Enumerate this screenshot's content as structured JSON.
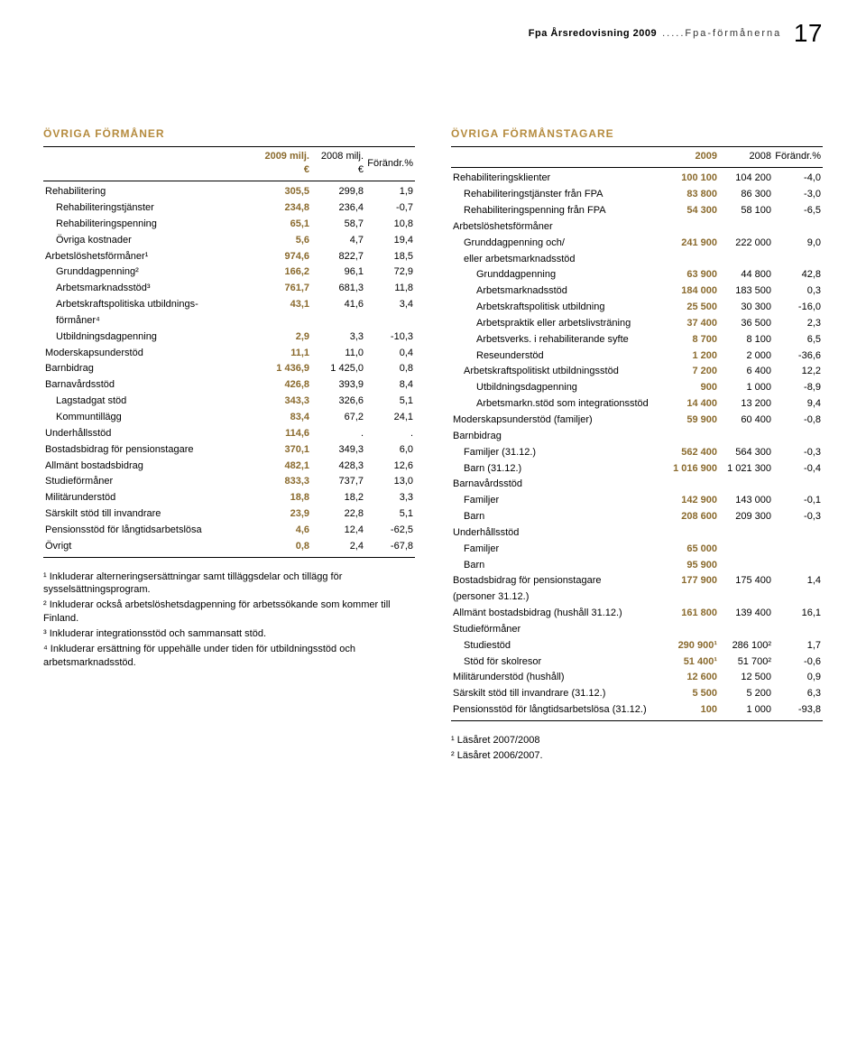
{
  "header": {
    "title": "Fpa Årsredovisning 2009",
    "section": ".....Fpa-förmånerna",
    "page": "17"
  },
  "left_table": {
    "title": "ÖVRIGA FÖRMÅNER",
    "columns": [
      "",
      "2009 milj. €",
      "2008 milj. €",
      "Förändr.%"
    ],
    "rows": [
      {
        "l": "Rehabilitering",
        "i": 0,
        "v": [
          "305,5",
          "299,8",
          "1,9"
        ]
      },
      {
        "l": "Rehabiliteringstjänster",
        "i": 1,
        "v": [
          "234,8",
          "236,4",
          "-0,7"
        ]
      },
      {
        "l": "Rehabiliteringspenning",
        "i": 1,
        "v": [
          "65,1",
          "58,7",
          "10,8"
        ]
      },
      {
        "l": "Övriga kostnader",
        "i": 1,
        "v": [
          "5,6",
          "4,7",
          "19,4"
        ]
      },
      {
        "l": "Arbetslöshetsförmåner¹",
        "i": 0,
        "v": [
          "974,6",
          "822,7",
          "18,5"
        ]
      },
      {
        "l": "Grunddagpenning²",
        "i": 1,
        "v": [
          "166,2",
          "96,1",
          "72,9"
        ]
      },
      {
        "l": "Arbetsmarknadsstöd³",
        "i": 1,
        "v": [
          "761,7",
          "681,3",
          "11,8"
        ]
      },
      {
        "l": "Arbetskraftspolitiska utbildnings-",
        "i": 1,
        "v": [
          "43,1",
          "41,6",
          "3,4"
        ]
      },
      {
        "l": "förmåner⁴",
        "i": 1,
        "v": [
          "",
          "",
          ""
        ]
      },
      {
        "l": "Utbildningsdagpenning",
        "i": 1,
        "v": [
          "2,9",
          "3,3",
          "-10,3"
        ]
      },
      {
        "l": "Moderskapsunderstöd",
        "i": 0,
        "v": [
          "11,1",
          "11,0",
          "0,4"
        ]
      },
      {
        "l": "Barnbidrag",
        "i": 0,
        "v": [
          "1 436,9",
          "1 425,0",
          "0,8"
        ]
      },
      {
        "l": "Barnavårdsstöd",
        "i": 0,
        "v": [
          "426,8",
          "393,9",
          "8,4"
        ]
      },
      {
        "l": "Lagstadgat stöd",
        "i": 1,
        "v": [
          "343,3",
          "326,6",
          "5,1"
        ]
      },
      {
        "l": "Kommuntillägg",
        "i": 1,
        "v": [
          "83,4",
          "67,2",
          "24,1"
        ]
      },
      {
        "l": "Underhållsstöd",
        "i": 0,
        "v": [
          "114,6",
          ".",
          "."
        ]
      },
      {
        "l": "Bostadsbidrag för pensionstagare",
        "i": 0,
        "v": [
          "370,1",
          "349,3",
          "6,0"
        ]
      },
      {
        "l": "Allmänt bostadsbidrag",
        "i": 0,
        "v": [
          "482,1",
          "428,3",
          "12,6"
        ]
      },
      {
        "l": "Studieförmåner",
        "i": 0,
        "v": [
          "833,3",
          "737,7",
          "13,0"
        ]
      },
      {
        "l": "Militärunderstöd",
        "i": 0,
        "v": [
          "18,8",
          "18,2",
          "3,3"
        ]
      },
      {
        "l": "Särskilt stöd till invandrare",
        "i": 0,
        "v": [
          "23,9",
          "22,8",
          "5,1"
        ]
      },
      {
        "l": "Pensionsstöd för långtidsarbetslösa",
        "i": 0,
        "v": [
          "4,6",
          "12,4",
          "-62,5"
        ]
      },
      {
        "l": "Övrigt",
        "i": 0,
        "v": [
          "0,8",
          "2,4",
          "-67,8"
        ]
      }
    ],
    "footnotes": [
      "¹ Inkluderar alterneringsersättningar samt tilläggsdelar och tillägg för sysselsättningsprogram.",
      "² Inkluderar också arbetslöshetsdagpenning för arbetssökande som kommer till Finland.",
      "³ Inkluderar integrationsstöd och sammansatt stöd.",
      "⁴ Inkluderar ersättning för uppehälle under tiden för utbildningsstöd och arbetsmarknadsstöd."
    ]
  },
  "right_table": {
    "title": "ÖVRIGA FÖRMÅNSTAGARE",
    "columns": [
      "",
      "2009",
      "2008",
      "Förändr.%"
    ],
    "rows": [
      {
        "l": "Rehabiliteringsklienter",
        "i": 0,
        "v": [
          "100 100",
          "104 200",
          "-4,0"
        ]
      },
      {
        "l": "Rehabiliteringstjänster från FPA",
        "i": 1,
        "v": [
          "83 800",
          "86 300",
          "-3,0"
        ]
      },
      {
        "l": "Rehabiliteringspenning från FPA",
        "i": 1,
        "v": [
          "54 300",
          "58 100",
          "-6,5"
        ]
      },
      {
        "l": "Arbetslöshetsförmåner",
        "i": 0,
        "v": [
          "",
          "",
          ""
        ]
      },
      {
        "l": "Grunddagpenning och/",
        "i": 1,
        "v": [
          "241 900",
          "222 000",
          "9,0"
        ]
      },
      {
        "l": "eller arbetsmarknadsstöd",
        "i": 1,
        "v": [
          "",
          "",
          ""
        ]
      },
      {
        "l": "Grunddagpenning",
        "i": 2,
        "v": [
          "63 900",
          "44 800",
          "42,8"
        ]
      },
      {
        "l": "Arbetsmarknadsstöd",
        "i": 2,
        "v": [
          "184 000",
          "183 500",
          "0,3"
        ]
      },
      {
        "l": "Arbetskraftspolitisk utbildning",
        "i": 2,
        "v": [
          "25 500",
          "30 300",
          "-16,0"
        ]
      },
      {
        "l": "Arbetspraktik eller arbetslivsträning",
        "i": 2,
        "v": [
          "37 400",
          "36 500",
          "2,3"
        ]
      },
      {
        "l": "Arbetsverks. i rehabiliterande syfte",
        "i": 2,
        "v": [
          "8 700",
          "8 100",
          "6,5"
        ]
      },
      {
        "l": "Reseunderstöd",
        "i": 2,
        "v": [
          "1 200",
          "2 000",
          "-36,6"
        ]
      },
      {
        "l": "Arbetskraftspolitiskt utbildningsstöd",
        "i": 1,
        "v": [
          "7 200",
          "6 400",
          "12,2"
        ]
      },
      {
        "l": "Utbildningsdagpenning",
        "i": 2,
        "v": [
          "900",
          "1 000",
          "-8,9"
        ]
      },
      {
        "l": "Arbetsmarkn.stöd som integrationsstöd",
        "i": 2,
        "v": [
          "14 400",
          "13 200",
          "9,4"
        ]
      },
      {
        "l": "Moderskapsunderstöd (familjer)",
        "i": 0,
        "v": [
          "59 900",
          "60 400",
          "-0,8"
        ]
      },
      {
        "l": "Barnbidrag",
        "i": 0,
        "v": [
          "",
          "",
          ""
        ]
      },
      {
        "l": "Familjer (31.12.)",
        "i": 1,
        "v": [
          "562 400",
          "564 300",
          "-0,3"
        ]
      },
      {
        "l": "Barn (31.12.)",
        "i": 1,
        "v": [
          "1 016 900",
          "1 021 300",
          "-0,4"
        ]
      },
      {
        "l": "Barnavårdsstöd",
        "i": 0,
        "v": [
          "",
          "",
          ""
        ]
      },
      {
        "l": "Familjer",
        "i": 1,
        "v": [
          "142 900",
          "143 000",
          "-0,1"
        ]
      },
      {
        "l": "Barn",
        "i": 1,
        "v": [
          "208 600",
          "209 300",
          "-0,3"
        ]
      },
      {
        "l": "Underhållsstöd",
        "i": 0,
        "v": [
          "",
          "",
          ""
        ]
      },
      {
        "l": "Familjer",
        "i": 1,
        "v": [
          "65 000",
          "",
          ""
        ]
      },
      {
        "l": "Barn",
        "i": 1,
        "v": [
          "95 900",
          "",
          ""
        ]
      },
      {
        "l": "Bostadsbidrag för pensionstagare",
        "i": 0,
        "v": [
          "177 900",
          "175 400",
          "1,4"
        ]
      },
      {
        "l": "(personer 31.12.)",
        "i": 0,
        "v": [
          "",
          "",
          ""
        ]
      },
      {
        "l": "Allmänt bostadsbidrag (hushåll 31.12.)",
        "i": 0,
        "v": [
          "161 800",
          "139 400",
          "16,1"
        ]
      },
      {
        "l": "Studieförmåner",
        "i": 0,
        "v": [
          "",
          "",
          ""
        ]
      },
      {
        "l": "Studiestöd",
        "i": 1,
        "v": [
          "290 900¹",
          "286 100²",
          "1,7"
        ]
      },
      {
        "l": "Stöd för skolresor",
        "i": 1,
        "v": [
          "51 400¹",
          "51 700²",
          "-0,6"
        ]
      },
      {
        "l": "Militärunderstöd (hushåll)",
        "i": 0,
        "v": [
          "12 600",
          "12 500",
          "0,9"
        ]
      },
      {
        "l": "Särskilt stöd till invandrare (31.12.)",
        "i": 0,
        "v": [
          "5 500",
          "5 200",
          "6,3"
        ]
      },
      {
        "l": "Pensionsstöd för långtidsarbetslösa (31.12.)",
        "i": 0,
        "v": [
          "100",
          "1 000",
          "-93,8"
        ]
      }
    ],
    "footnotes": [
      "¹ Läsåret 2007/2008",
      "² Läsåret 2006/2007."
    ]
  }
}
